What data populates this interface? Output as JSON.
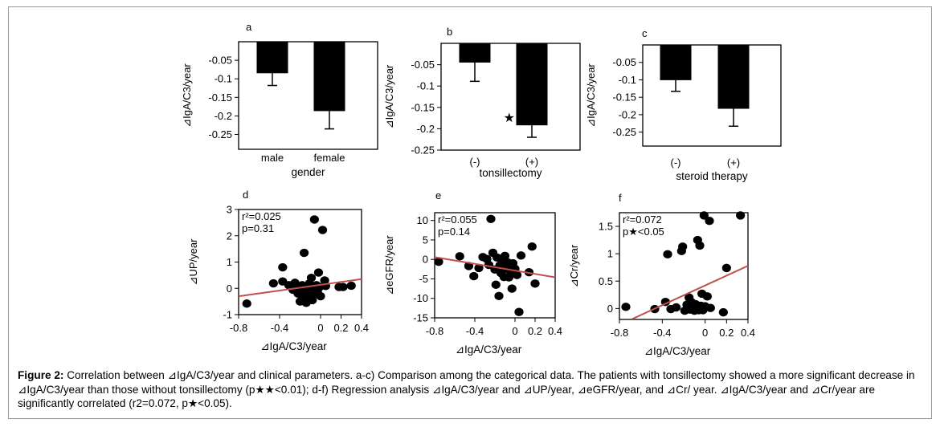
{
  "colors": {
    "bar": "#000000",
    "regression_line": "#c0504d",
    "point": "#000000",
    "frame": "#9a9a9a"
  },
  "chart_data": [
    {
      "panel": "a",
      "type": "bar",
      "categories": [
        "male",
        "female"
      ],
      "values": [
        -0.085,
        -0.187
      ],
      "errors": [
        0.033,
        0.048
      ],
      "xlabel": "gender",
      "ylabel": "⊿IgA/C3/year",
      "ylim": [
        -0.29,
        0.0
      ],
      "yticks": [
        -0.05,
        -0.1,
        -0.15,
        -0.2,
        -0.25
      ],
      "ytick_labels": [
        "-0.05",
        "-0.1",
        "-0.15",
        "-0.2",
        "-0.25"
      ],
      "annotations": []
    },
    {
      "panel": "b",
      "type": "bar",
      "categories": [
        "(-)",
        "(+)"
      ],
      "values": [
        -0.045,
        -0.192
      ],
      "errors": [
        0.044,
        0.028
      ],
      "xlabel": "tonsillectomy",
      "ylabel": "⊿IgA/C3/year",
      "ylim": [
        -0.25,
        0.0
      ],
      "yticks": [
        -0.05,
        -0.1,
        -0.15,
        -0.2,
        -0.25
      ],
      "ytick_labels": [
        "-0.05",
        "-0.1",
        "-0.15",
        "-0.2",
        "-0.25"
      ],
      "annotations": [
        "★★"
      ]
    },
    {
      "panel": "c",
      "type": "bar",
      "categories": [
        "(-)",
        "(+)"
      ],
      "values": [
        -0.101,
        -0.183
      ],
      "errors": [
        0.032,
        0.05
      ],
      "xlabel": "steroid therapy",
      "ylabel": "⊿IgA/C3/year",
      "ylim": [
        -0.29,
        0.0
      ],
      "yticks": [
        -0.05,
        -0.1,
        -0.15,
        -0.2,
        -0.25
      ],
      "ytick_labels": [
        "-0.05",
        "-0.1",
        "-0.15",
        "-0.2",
        "-0.25"
      ],
      "annotations": []
    },
    {
      "panel": "d",
      "type": "scatter",
      "xlabel": "⊿IgA/C3/year",
      "ylabel": "⊿UP/year",
      "xlim": [
        -0.8,
        0.4
      ],
      "ylim": [
        -1,
        3
      ],
      "xticks": [
        -0.8,
        -0.4,
        0,
        0.2,
        0.4
      ],
      "xtick_labels": [
        "-0.8",
        "-0.4",
        "0",
        "0.2",
        "0.4"
      ],
      "yticks": [
        -1,
        0,
        1,
        2,
        3
      ],
      "ytick_labels": [
        "-1",
        "0",
        "1",
        "2",
        "3"
      ],
      "stats": [
        "r²=0.025",
        "p=0.31"
      ],
      "fit_line": [
        [
          -0.8,
          -0.3
        ],
        [
          0.4,
          0.35
        ]
      ],
      "points": [
        [
          -0.72,
          -0.58
        ],
        [
          -0.46,
          0.19
        ],
        [
          -0.37,
          0.8
        ],
        [
          -0.37,
          0.26
        ],
        [
          -0.31,
          0.12
        ],
        [
          -0.27,
          -0.05
        ],
        [
          -0.25,
          0.21
        ],
        [
          -0.23,
          0.02
        ],
        [
          -0.22,
          -0.2
        ],
        [
          -0.2,
          -0.5
        ],
        [
          -0.18,
          0.12
        ],
        [
          -0.17,
          -0.3
        ],
        [
          -0.16,
          1.35
        ],
        [
          -0.15,
          -0.05
        ],
        [
          -0.14,
          -0.55
        ],
        [
          -0.13,
          0.05
        ],
        [
          -0.12,
          -0.3
        ],
        [
          -0.11,
          0.18
        ],
        [
          -0.1,
          -0.05
        ],
        [
          -0.09,
          0.4
        ],
        [
          -0.08,
          -0.45
        ],
        [
          -0.07,
          0.07
        ],
        [
          -0.06,
          2.62
        ],
        [
          -0.05,
          -0.2
        ],
        [
          -0.04,
          0.12
        ],
        [
          -0.03,
          -0.1
        ],
        [
          -0.02,
          0.6
        ],
        [
          -0.01,
          0.05
        ],
        [
          0.0,
          -0.3
        ],
        [
          0.02,
          2.22
        ],
        [
          0.04,
          0.3
        ],
        [
          0.05,
          0.09
        ],
        [
          0.18,
          0.05
        ],
        [
          0.22,
          0.05
        ],
        [
          0.3,
          0.1
        ]
      ]
    },
    {
      "panel": "e",
      "type": "scatter",
      "xlabel": "⊿IgA/C3/year",
      "ylabel": "⊿eGFR/year",
      "xlim": [
        -0.8,
        0.4
      ],
      "ylim": [
        -15,
        12
      ],
      "xticks": [
        -0.8,
        -0.4,
        0,
        0.2,
        0.4
      ],
      "xtick_labels": [
        "-0.8",
        "-0.4",
        "0",
        "0.2",
        "0.4"
      ],
      "yticks": [
        -15,
        -10,
        -5,
        0,
        5,
        10
      ],
      "ytick_labels": [
        "-15",
        "-10",
        "-5",
        "0",
        "5",
        "10"
      ],
      "stats": [
        "r²=0.055",
        "p=0.14"
      ],
      "fit_line": [
        [
          -0.8,
          0.6
        ],
        [
          0.4,
          -4.6
        ]
      ],
      "points": [
        [
          -0.76,
          -0.6
        ],
        [
          -0.55,
          0.8
        ],
        [
          -0.46,
          -1.7
        ],
        [
          -0.41,
          -4.3
        ],
        [
          -0.36,
          -2.2
        ],
        [
          -0.32,
          0.6
        ],
        [
          -0.28,
          0.1
        ],
        [
          -0.26,
          -1.4
        ],
        [
          -0.24,
          10.4
        ],
        [
          -0.22,
          1.7
        ],
        [
          -0.2,
          -2.6
        ],
        [
          -0.19,
          -6.5
        ],
        [
          -0.18,
          0.5
        ],
        [
          -0.16,
          -9.4
        ],
        [
          -0.15,
          -1.5
        ],
        [
          -0.14,
          -3.5
        ],
        [
          -0.13,
          -0.2
        ],
        [
          -0.12,
          -2.1
        ],
        [
          -0.11,
          -4.5
        ],
        [
          -0.1,
          0.9
        ],
        [
          -0.09,
          -1.1
        ],
        [
          -0.08,
          -2.5
        ],
        [
          -0.07,
          -0.8
        ],
        [
          -0.06,
          -4.6
        ],
        [
          -0.05,
          -1.8
        ],
        [
          -0.04,
          -3.3
        ],
        [
          -0.03,
          -7.5
        ],
        [
          -0.02,
          -1.0
        ],
        [
          0.0,
          -2.4
        ],
        [
          0.02,
          -4.0
        ],
        [
          0.04,
          -13.5
        ],
        [
          0.06,
          1.0
        ],
        [
          0.14,
          -3.3
        ],
        [
          0.17,
          3.3
        ],
        [
          0.2,
          -6.2
        ]
      ]
    },
    {
      "panel": "f",
      "type": "scatter",
      "xlabel": "⊿IgA/C3/year",
      "ylabel": "⊿Cr/year",
      "xlim": [
        -0.8,
        0.4
      ],
      "ylim": [
        -0.2,
        1.75
      ],
      "xticks": [
        -0.8,
        -0.4,
        0,
        0.2,
        0.4
      ],
      "xtick_labels": [
        "-0.8",
        "-0.4",
        "0",
        "0.2",
        "0.4"
      ],
      "yticks": [
        0,
        0.5,
        1,
        1.5
      ],
      "ytick_labels": [
        "0",
        "0.5",
        "1",
        "1.5"
      ],
      "stats": [
        "r²=0.072",
        "p★<0.05"
      ],
      "fit_line": [
        [
          -0.69,
          -0.2
        ],
        [
          0.4,
          0.78
        ]
      ],
      "points": [
        [
          -0.74,
          0.03
        ],
        [
          -0.47,
          -0.01
        ],
        [
          -0.37,
          0.12
        ],
        [
          -0.35,
          0.99
        ],
        [
          -0.32,
          -0.01
        ],
        [
          -0.27,
          0.02
        ],
        [
          -0.22,
          1.05
        ],
        [
          -0.21,
          1.13
        ],
        [
          -0.19,
          -0.04
        ],
        [
          -0.17,
          0.07
        ],
        [
          -0.15,
          0.2
        ],
        [
          -0.14,
          -0.02
        ],
        [
          -0.13,
          0.12
        ],
        [
          -0.11,
          0.05
        ],
        [
          -0.1,
          -0.04
        ],
        [
          -0.09,
          0.08
        ],
        [
          -0.08,
          0.02
        ],
        [
          -0.07,
          1.25
        ],
        [
          -0.06,
          -0.03
        ],
        [
          -0.05,
          1.15
        ],
        [
          -0.04,
          0.05
        ],
        [
          -0.03,
          0.27
        ],
        [
          -0.02,
          -0.03
        ],
        [
          -0.01,
          1.7
        ],
        [
          0.0,
          0.04
        ],
        [
          0.02,
          0.22
        ],
        [
          0.04,
          1.6
        ],
        [
          0.05,
          0.01
        ],
        [
          0.17,
          -0.07
        ],
        [
          0.2,
          0.74
        ],
        [
          0.33,
          1.7
        ]
      ]
    }
  ],
  "caption": {
    "label": "Figure 2:",
    "text": "Correlation between ⊿IgA/C3/year and clinical parameters. a-c) Comparison among the categorical data.  The patients with tonsillectomy showed a more significant decrease in ⊿IgA/C3/year than those without tonsillectomy (p★★<0.01); d-f) Regression analysis ⊿IgA/C3/year and ⊿UP/year, ⊿eGFR/year, and ⊿Cr/ year.  ⊿IgA/C3/year and ⊿Cr/year are significantly correlated (r2=0.072, p★<0.05)."
  }
}
